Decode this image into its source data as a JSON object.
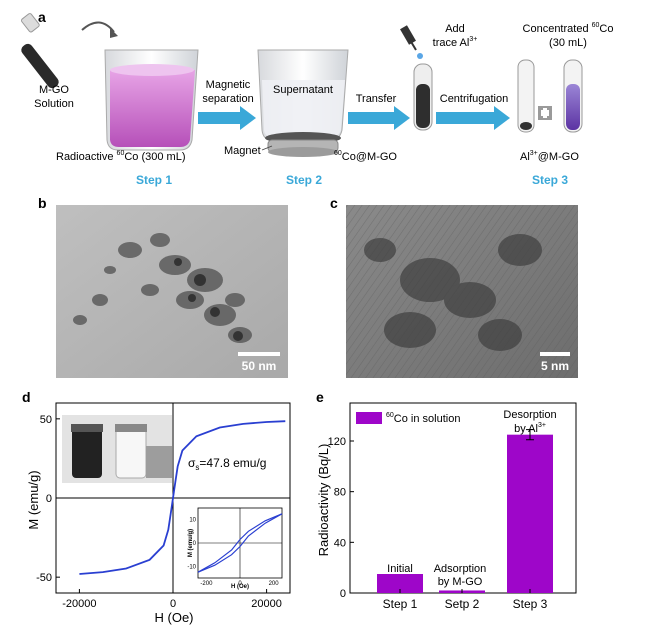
{
  "panels": {
    "a": "a",
    "b": "b",
    "c": "c",
    "d": "d",
    "e": "e"
  },
  "panel_a": {
    "mgo_line1": "M-GO",
    "mgo_line2": "Solution",
    "radioactive_pre": "Radioactive ",
    "radioactive_sup": "60",
    "radioactive_post": "Co (300 mL)",
    "magnetic_line1": "Magnetic",
    "magnetic_line2": "separation",
    "supernatant": "Supernatant",
    "magnet": "Magnet",
    "coatmgo_sup": "60",
    "coatmgo_post": "Co@M-GO",
    "transfer": "Transfer",
    "add_line1": "Add",
    "add_line2_pre": "trace Al",
    "add_line2_sup": "3+",
    "centrifugation": "Centrifugation",
    "conc_line1_pre": "Concentrated ",
    "conc_line1_sup": "60",
    "conc_line1_post": "Co",
    "conc_line2": "(30 mL)",
    "al_pre": "Al",
    "al_sup": "3+",
    "al_post": "@M-GO",
    "step1": "Step 1",
    "step2": "Step 2",
    "step3": "Step 3",
    "accent": "#3aa8d8"
  },
  "panel_b": {
    "scale_bar": "50 nm"
  },
  "panel_c": {
    "scale_bar": "5 nm"
  },
  "panel_d": {
    "ylabel": "M (emu/g)",
    "xlabel": "H (Oe)",
    "sigma_label_pre": "σ",
    "sigma_label_sub": "s",
    "sigma_label_post": "=47.8 emu/g",
    "inset_xlabel": "H (Oe)",
    "inset_ylabel": "M (emu/g)"
  },
  "panel_e": {
    "ylabel": "Radioactivity (Bq/L)",
    "legend_sup": "60",
    "legend_post": "Co in solution",
    "bar_labels": [
      "Initial",
      "Adsorption\nby M-GO",
      "Desorption\nby Al3+"
    ]
  },
  "chart_data": [
    {
      "type": "line",
      "panel": "d",
      "xlabel": "H (Oe)",
      "ylabel": "M (emu/g)",
      "xlim": [
        -25000,
        25000
      ],
      "ylim": [
        -60,
        60
      ],
      "xticks": [
        -20000,
        0,
        20000
      ],
      "yticks": [
        -50,
        0,
        50
      ],
      "x": [
        -20000,
        -15000,
        -10000,
        -5000,
        -2000,
        -1000,
        -500,
        -200,
        0,
        200,
        500,
        1000,
        2000,
        5000,
        10000,
        15000,
        20000,
        24000
      ],
      "y": [
        -48.0,
        -46.8,
        -44.5,
        -39.0,
        -30.0,
        -20.0,
        -10.0,
        -4.0,
        0,
        4.0,
        10.0,
        20.0,
        30.0,
        39.0,
        44.5,
        46.8,
        48.0,
        48.5
      ],
      "color": "#2a3fd1",
      "inset": {
        "xlim": [
          -250,
          250
        ],
        "ylim": [
          -15,
          15
        ],
        "xticks": [
          -200,
          0,
          200
        ],
        "yticks": [
          -10,
          0,
          10
        ],
        "up_x": [
          -250,
          -150,
          -50,
          0,
          50,
          150,
          250
        ],
        "up_y": [
          -12.5,
          -9.5,
          -5.0,
          -1.5,
          3.0,
          8.5,
          12.5
        ],
        "down_x": [
          250,
          150,
          50,
          0,
          -50,
          -150,
          -250
        ],
        "down_y": [
          12.5,
          9.5,
          5.0,
          1.5,
          -3.0,
          -8.5,
          -12.5
        ]
      }
    },
    {
      "type": "bar",
      "panel": "e",
      "categories": [
        "Step 1",
        "Setp 2",
        "Step 3"
      ],
      "values": [
        15,
        2,
        125
      ],
      "errors": [
        0,
        0,
        4
      ],
      "ylabel": "Radioactivity (Bq/L)",
      "ylim": [
        0,
        150
      ],
      "yticks": [
        0,
        40,
        80,
        120
      ],
      "legend": "60Co in solution",
      "color": "#9e06c9"
    }
  ]
}
